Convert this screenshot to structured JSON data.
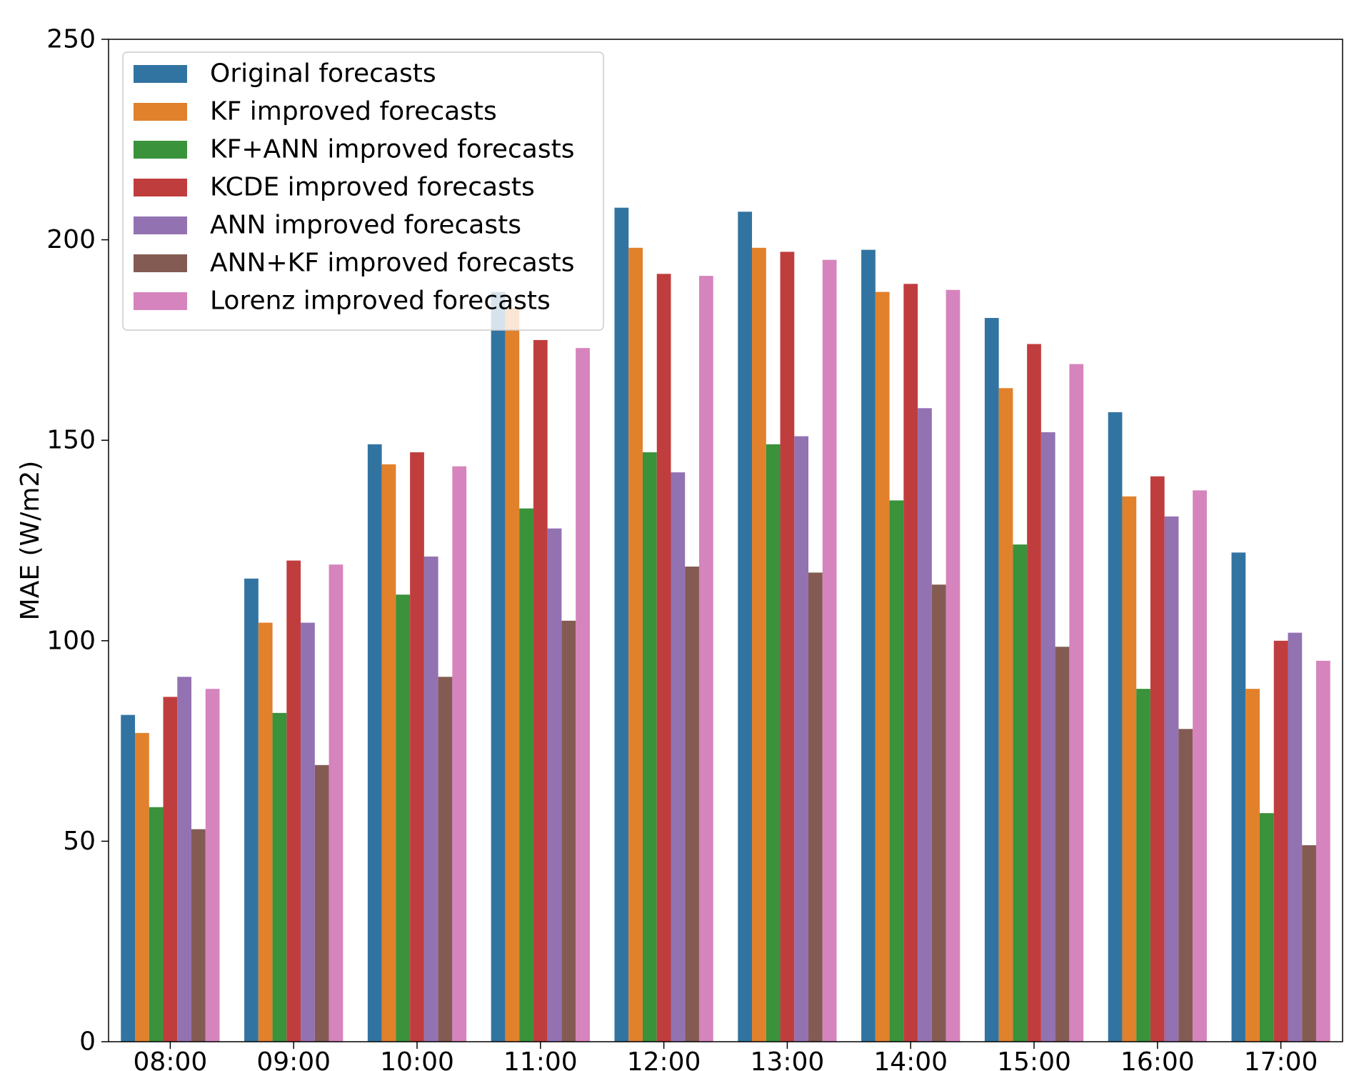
{
  "chart_data": {
    "type": "bar",
    "title": "",
    "xlabel": "",
    "ylabel": "MAE (W/m2)",
    "ylim": [
      0,
      250
    ],
    "yticks": [
      "0",
      "50",
      "100",
      "150",
      "200",
      "250"
    ],
    "grid": false,
    "legend_position": "top-left",
    "categories": [
      "08:00",
      "09:00",
      "10:00",
      "11:00",
      "12:00",
      "13:00",
      "14:00",
      "15:00",
      "16:00",
      "17:00"
    ],
    "series": [
      {
        "name": "Original forecasts",
        "color": "#3274a1",
        "values": [
          81.5,
          115.5,
          149,
          187,
          208,
          207,
          197.5,
          180.5,
          157,
          122
        ]
      },
      {
        "name": "KF improved forecasts",
        "color": "#e1812c",
        "values": [
          77,
          104.5,
          144,
          183,
          198,
          198,
          187,
          163,
          136,
          88
        ]
      },
      {
        "name": "KF+ANN improved forecasts",
        "color": "#3a923a",
        "values": [
          58.5,
          82,
          111.5,
          133,
          147,
          149,
          135,
          124,
          88,
          57
        ]
      },
      {
        "name": "KCDE improved forecasts",
        "color": "#c03d3e",
        "values": [
          86,
          120,
          147,
          175,
          191.5,
          197,
          189,
          174,
          141,
          100
        ]
      },
      {
        "name": "ANN improved forecasts",
        "color": "#9372b2",
        "values": [
          91,
          104.5,
          121,
          128,
          142,
          151,
          158,
          152,
          131,
          102
        ]
      },
      {
        "name": "ANN+KF improved forecasts",
        "color": "#845b53",
        "values": [
          53,
          69,
          91,
          105,
          118.5,
          117,
          114,
          98.5,
          78,
          49
        ]
      },
      {
        "name": "Lorenz improved forecasts",
        "color": "#d684bd",
        "values": [
          88,
          119,
          143.5,
          173,
          191,
          195,
          187.5,
          169,
          137.5,
          95
        ]
      }
    ]
  }
}
